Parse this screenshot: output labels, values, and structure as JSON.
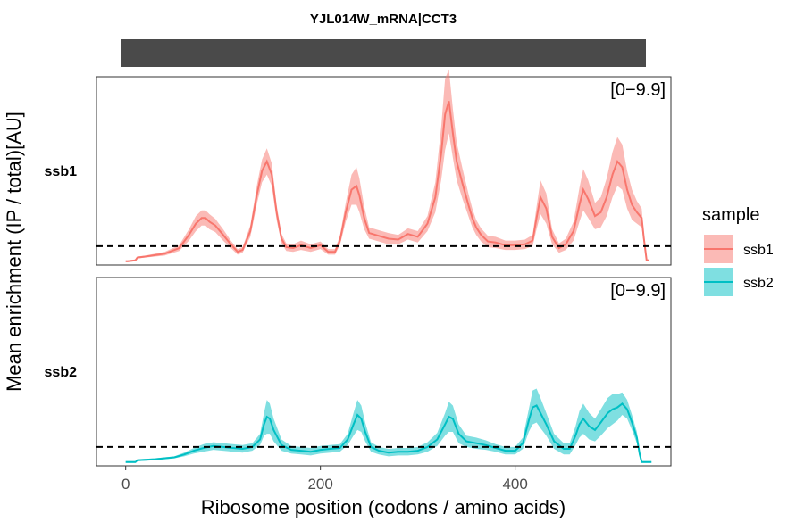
{
  "chart_data": {
    "type": "area",
    "title": "YJL014W_mRNA|CCT3",
    "xlabel": "Ribosome position (codons / amino acids)",
    "ylabel": "Mean enrichment (IP / total)[AU]",
    "xlim": [
      -30,
      560
    ],
    "x_ticks": [
      0,
      200,
      400
    ],
    "ylim": [
      0,
      10
    ],
    "baseline": 1,
    "legend": {
      "title": "sample",
      "position": "right"
    },
    "panels": [
      {
        "label": "ssb1",
        "range_label": "[0−9.9]"
      },
      {
        "label": "ssb2",
        "range_label": "[0−9.9]"
      }
    ],
    "series": [
      {
        "name": "ssb1",
        "color": "#F8766D",
        "x": [
          0,
          2,
          10,
          12,
          20,
          40,
          55,
          65,
          72,
          78,
          82,
          86,
          92,
          100,
          108,
          115,
          120,
          128,
          135,
          140,
          145,
          150,
          155,
          160,
          165,
          172,
          180,
          190,
          200,
          208,
          215,
          220,
          226,
          232,
          237,
          240,
          245,
          250,
          260,
          270,
          280,
          290,
          300,
          310,
          318,
          324,
          328,
          332,
          336,
          340,
          346,
          352,
          356,
          360,
          365,
          372,
          380,
          390,
          400,
          410,
          418,
          422,
          426,
          432,
          438,
          445,
          452,
          460,
          466,
          470,
          475,
          482,
          488,
          494,
          500,
          505,
          510,
          515,
          520,
          525,
          530,
          532,
          535,
          538
        ],
        "value": [
          0.2,
          0.2,
          0.25,
          0.4,
          0.45,
          0.6,
          0.9,
          1.6,
          2.2,
          2.5,
          2.5,
          2.3,
          2.1,
          1.6,
          1.1,
          0.7,
          0.8,
          1.8,
          3.8,
          5.0,
          5.5,
          4.8,
          2.8,
          1.4,
          0.95,
          0.9,
          1.05,
          0.9,
          1.05,
          0.7,
          0.7,
          1.3,
          2.8,
          4.0,
          4.2,
          3.7,
          2.5,
          1.7,
          1.55,
          1.4,
          1.35,
          1.65,
          1.5,
          2.2,
          3.6,
          5.9,
          8.0,
          8.7,
          7.0,
          5.5,
          4.3,
          3.2,
          2.5,
          2.0,
          1.6,
          1.25,
          1.2,
          1.05,
          1.05,
          1.1,
          1.3,
          2.5,
          3.6,
          3.0,
          1.5,
          0.9,
          1.1,
          1.8,
          3.2,
          4.0,
          3.5,
          2.6,
          2.8,
          3.6,
          4.8,
          5.5,
          5.2,
          4.0,
          3.2,
          2.8,
          2.5,
          1.5,
          0.25,
          0.25
        ],
        "spread": [
          0.05,
          0.05,
          0.05,
          0.05,
          0.05,
          0.1,
          0.15,
          0.3,
          0.4,
          0.4,
          0.4,
          0.4,
          0.35,
          0.3,
          0.2,
          0.15,
          0.15,
          0.3,
          0.5,
          0.6,
          0.7,
          0.6,
          0.4,
          0.25,
          0.2,
          0.2,
          0.25,
          0.2,
          0.2,
          0.15,
          0.15,
          0.25,
          0.5,
          0.8,
          1.0,
          0.9,
          0.6,
          0.3,
          0.3,
          0.3,
          0.25,
          0.3,
          0.3,
          0.4,
          0.8,
          1.4,
          1.9,
          1.7,
          1.3,
          1.0,
          0.8,
          0.6,
          0.5,
          0.4,
          0.35,
          0.3,
          0.3,
          0.25,
          0.25,
          0.25,
          0.3,
          0.6,
          0.9,
          0.8,
          0.4,
          0.25,
          0.3,
          0.5,
          0.9,
          1.1,
          1.0,
          0.7,
          0.8,
          1.0,
          1.2,
          1.3,
          1.2,
          1.0,
          0.8,
          0.6,
          0.5,
          0.3,
          0.05,
          0.05
        ]
      },
      {
        "name": "ssb2",
        "color": "#00BFC4",
        "x": [
          0,
          3,
          10,
          12,
          30,
          50,
          60,
          70,
          80,
          90,
          100,
          110,
          120,
          130,
          138,
          142,
          145,
          148,
          152,
          160,
          170,
          180,
          190,
          200,
          210,
          220,
          228,
          234,
          238,
          242,
          246,
          252,
          260,
          270,
          280,
          290,
          300,
          310,
          320,
          328,
          332,
          336,
          342,
          350,
          360,
          370,
          380,
          390,
          400,
          408,
          414,
          418,
          422,
          426,
          432,
          440,
          450,
          456,
          462,
          466,
          470,
          476,
          482,
          488,
          495,
          500,
          505,
          510,
          515,
          520,
          525,
          528,
          530,
          532,
          540
        ],
        "value": [
          0.2,
          0.2,
          0.2,
          0.3,
          0.35,
          0.45,
          0.6,
          0.8,
          0.95,
          1.05,
          1.0,
          0.95,
          0.9,
          1.0,
          1.4,
          2.2,
          2.6,
          2.5,
          1.9,
          1.1,
          0.85,
          0.8,
          0.75,
          0.85,
          0.9,
          0.95,
          1.4,
          2.2,
          2.7,
          2.5,
          1.8,
          1.0,
          0.8,
          0.7,
          0.75,
          0.75,
          0.8,
          1.0,
          1.4,
          2.2,
          2.6,
          2.5,
          1.7,
          1.3,
          1.2,
          1.1,
          0.95,
          0.8,
          0.8,
          1.2,
          2.4,
          3.1,
          3.2,
          2.8,
          2.2,
          1.3,
          0.9,
          0.9,
          1.6,
          2.2,
          2.5,
          2.1,
          1.9,
          2.3,
          2.8,
          3.0,
          3.1,
          3.3,
          3.0,
          2.3,
          1.5,
          0.6,
          0.2,
          0.2,
          0.2
        ],
        "spread": [
          0.05,
          0.05,
          0.05,
          0.05,
          0.05,
          0.05,
          0.1,
          0.15,
          0.2,
          0.2,
          0.2,
          0.2,
          0.2,
          0.2,
          0.3,
          0.6,
          0.9,
          0.8,
          0.6,
          0.3,
          0.2,
          0.2,
          0.2,
          0.2,
          0.2,
          0.2,
          0.3,
          0.6,
          0.8,
          0.7,
          0.5,
          0.25,
          0.2,
          0.2,
          0.2,
          0.2,
          0.2,
          0.25,
          0.35,
          0.6,
          0.8,
          0.7,
          0.5,
          0.3,
          0.3,
          0.25,
          0.2,
          0.2,
          0.2,
          0.3,
          0.6,
          0.9,
          0.9,
          0.8,
          0.6,
          0.4,
          0.3,
          0.3,
          0.5,
          0.7,
          0.8,
          0.7,
          0.6,
          0.7,
          0.8,
          0.8,
          0.7,
          0.6,
          0.5,
          0.4,
          0.3,
          0.1,
          0.05,
          0.05,
          0.05
        ]
      }
    ]
  }
}
